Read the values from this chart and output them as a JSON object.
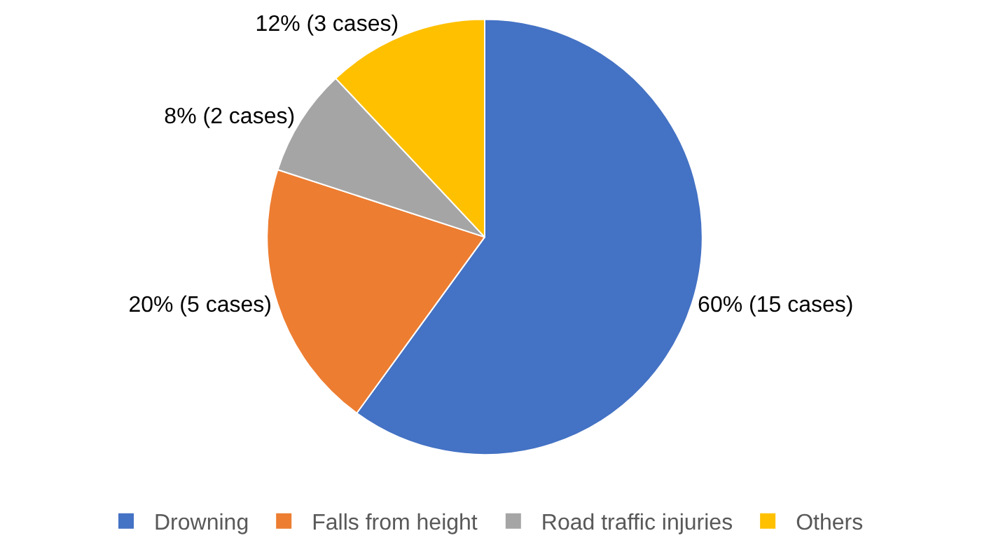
{
  "chart_data": {
    "type": "pie",
    "categories": [
      "Drowning",
      "Falls from height",
      "Road traffic injuries",
      "Others"
    ],
    "values": [
      15,
      5,
      2,
      3
    ],
    "value_labels": [
      "60% (15 cases)",
      "20% (5 cases)",
      "8% (2 cases)",
      "12% (3 cases)"
    ],
    "colors": [
      "#4472c4",
      "#ed7d31",
      "#a5a5a5",
      "#ffc000"
    ],
    "legend": "bottom"
  }
}
